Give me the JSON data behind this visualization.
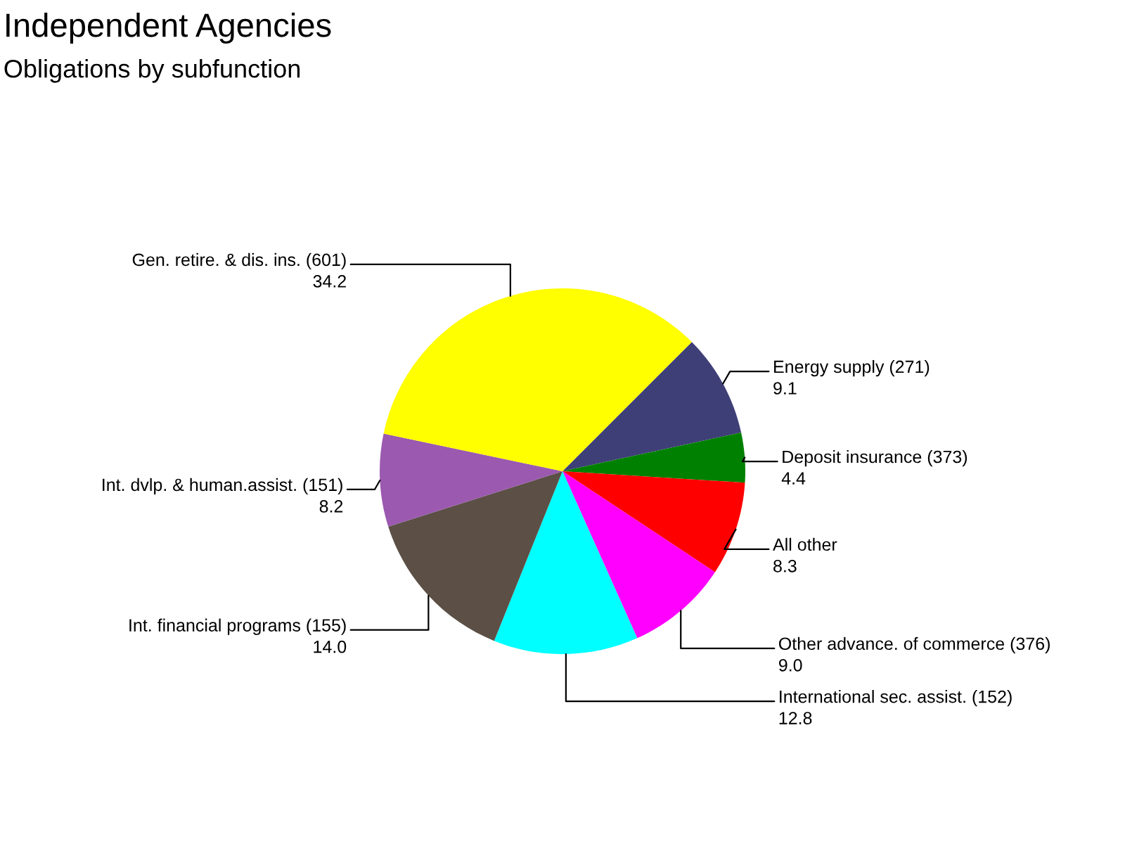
{
  "chart_data": {
    "type": "pie",
    "title": "Independent Agencies",
    "subtitle": "Obligations by subfunction",
    "categories": [
      "Energy supply (271)",
      "Deposit insurance (373)",
      "All other",
      "Other advance. of commerce (376)",
      "International sec. assist. (152)",
      "Int. financial programs (155)",
      "Int. dvlp. & human.assist. (151)",
      "Gen. retire. & dis. ins. (601)"
    ],
    "values": [
      9.1,
      4.4,
      8.3,
      9.0,
      12.8,
      14.0,
      8.2,
      34.2
    ],
    "value_labels": [
      "9.1",
      "4.4",
      "8.3",
      "9.0",
      "12.8",
      "14.0",
      "8.2",
      "34.2"
    ],
    "colors": [
      "#3f3f78",
      "#008000",
      "#ff0000",
      "#ff00ff",
      "#00ffff",
      "#5c5046",
      "#9b59b0",
      "#ffff00"
    ]
  }
}
